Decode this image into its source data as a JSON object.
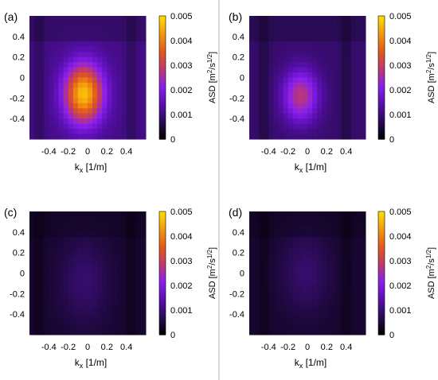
{
  "colors": {
    "colormap": [
      "#000000",
      "#2a0b55",
      "#5a0fb0",
      "#8a1ff0",
      "#c03a6a",
      "#e35a18",
      "#f29a10",
      "#ffe000"
    ],
    "divider": "#b3b3b3"
  },
  "chart_data": [
    {
      "type": "heatmap",
      "panel_label": "(a)",
      "xlabel": "k",
      "xlabel_sub": "x",
      "xlabel_unit": " [1/m]",
      "ylabel": "",
      "xlim": [
        -0.6,
        0.6
      ],
      "ylim": [
        -0.6,
        0.6
      ],
      "x_ticks": [
        "-0.4",
        "-0.2",
        "0",
        "0.2",
        "0.4"
      ],
      "y_ticks": [
        "0.4",
        "0.2",
        "0",
        "-0.2",
        "-0.4"
      ],
      "colorbar": {
        "label": "ASD [m",
        "label_sup": "2",
        "label_mid": "/s",
        "label_sup2": "1/2",
        "label_end": "]",
        "range": [
          0,
          0.005
        ],
        "ticks": [
          "0.005",
          "0.004",
          "0.003",
          "0.002",
          "0.001",
          "0"
        ]
      },
      "field": {
        "background": 0.0011,
        "peak": {
          "x": -0.04,
          "y": -0.16,
          "value": 0.0047,
          "sx": 0.14,
          "sy": 0.2
        },
        "ridge_value": 0.0007,
        "dark_lines": [
          -0.5,
          0.45
        ]
      }
    },
    {
      "type": "heatmap",
      "panel_label": "(b)",
      "xlabel": "k",
      "xlabel_sub": "x",
      "xlabel_unit": " [1/m]",
      "ylabel": "",
      "xlim": [
        -0.6,
        0.6
      ],
      "ylim": [
        -0.6,
        0.6
      ],
      "x_ticks": [
        "-0.4",
        "-0.2",
        "0",
        "0.2",
        "0.4"
      ],
      "y_ticks": [
        "0.4",
        "0.2",
        "0",
        "-0.2",
        "-0.4"
      ],
      "colorbar": {
        "label": "ASD [m",
        "label_sup": "2",
        "label_mid": "/s",
        "label_sup2": "1/2",
        "label_end": "]",
        "range": [
          0,
          0.005
        ],
        "ticks": [
          "0.005",
          "0.004",
          "0.003",
          "0.002",
          "0.001",
          "0"
        ]
      },
      "field": {
        "background": 0.0009,
        "peak": {
          "x": -0.07,
          "y": -0.18,
          "value": 0.0028,
          "sx": 0.13,
          "sy": 0.18
        },
        "ridge_value": 0.0005,
        "dark_lines": [
          -0.45,
          0.4
        ]
      }
    },
    {
      "type": "heatmap",
      "panel_label": "(c)",
      "xlabel": "k",
      "xlabel_sub": "x",
      "xlabel_unit": " [1/m]",
      "ylabel": "",
      "xlim": [
        -0.6,
        0.6
      ],
      "ylim": [
        -0.6,
        0.6
      ],
      "x_ticks": [
        "-0.4",
        "-0.2",
        "0",
        "0.2",
        "0.4"
      ],
      "y_ticks": [
        "0.4",
        "0.2",
        "0",
        "-0.2",
        "-0.4"
      ],
      "colorbar": {
        "label": "ASD [m",
        "label_sup": "2",
        "label_mid": "/s",
        "label_sup2": "1/2",
        "label_end": "]",
        "range": [
          0,
          0.005
        ],
        "ticks": [
          "0.005",
          "0.004",
          "0.003",
          "0.002",
          "0.001",
          "0"
        ]
      },
      "field": {
        "background": 0.0004,
        "peak": {
          "x": -0.03,
          "y": -0.08,
          "value": 0.0009,
          "sx": 0.18,
          "sy": 0.3
        },
        "ridge_value": 0.0002,
        "dark_lines": [
          -0.5,
          0.45
        ]
      }
    },
    {
      "type": "heatmap",
      "panel_label": "(d)",
      "xlabel": "k",
      "xlabel_sub": "x",
      "xlabel_unit": " [1/m]",
      "ylabel": "",
      "xlim": [
        -0.6,
        0.6
      ],
      "ylim": [
        -0.6,
        0.6
      ],
      "x_ticks": [
        "-0.4",
        "-0.2",
        "0",
        "0.2",
        "0.4"
      ],
      "y_ticks": [
        "0.4",
        "0.2",
        "0",
        "-0.2",
        "-0.4"
      ],
      "colorbar": {
        "label": "ASD [m",
        "label_sup": "2",
        "label_mid": "/s",
        "label_sup2": "1/2",
        "label_end": "]",
        "range": [
          0,
          0.005
        ],
        "ticks": [
          "0.005",
          "0.004",
          "0.003",
          "0.002",
          "0.001",
          "0"
        ]
      },
      "field": {
        "background": 0.0004,
        "peak": {
          "x": -0.02,
          "y": 0.0,
          "value": 0.0009,
          "sx": 0.18,
          "sy": 0.28
        },
        "ridge_value": 0.0002,
        "dark_lines": [
          -0.45,
          0.4
        ]
      }
    }
  ]
}
